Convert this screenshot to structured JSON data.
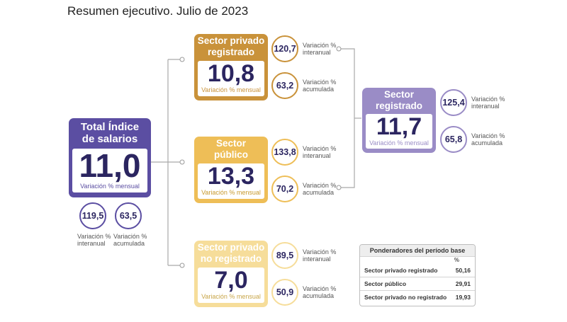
{
  "title": "Resumen ejecutivo. Julio de 2023",
  "colors": {
    "total": "#5b4ea2",
    "registrado": "#9a8cc6",
    "privado": "#c9923a",
    "publico": "#eebe57",
    "no_registrado": "#f6dd9a"
  },
  "total": {
    "label": "Total Índice de salarios",
    "value": "11,0",
    "sublabel": "Variación % mensual",
    "interanual": "119,5",
    "acumulada": "63,5",
    "interanual_label": "Variación % interanual",
    "acumulada_label": "Variación % acumulada"
  },
  "privado": {
    "label": "Sector privado registrado",
    "value": "10,8",
    "sublabel": "Variación % mensual",
    "interanual": "120,7",
    "acumulada": "63,2",
    "interanual_label": "Variación % interanual",
    "acumulada_label": "Variación % acumulada"
  },
  "publico": {
    "label": "Sector público",
    "value": "13,3",
    "sublabel": "Variación % mensual",
    "interanual": "133,8",
    "acumulada": "70,2",
    "interanual_label": "Variación % interanual",
    "acumulada_label": "Variación % acumulada"
  },
  "no_registrado": {
    "label": "Sector privado no registrado",
    "value": "7,0",
    "sublabel": "Variación % mensual",
    "interanual": "89,5",
    "acumulada": "50,9",
    "interanual_label": "Variación % interanual",
    "acumulada_label": "Variación % acumulada"
  },
  "registrado": {
    "label": "Sector registrado",
    "value": "11,7",
    "sublabel": "Variación % mensual",
    "interanual": "125,4",
    "acumulada": "65,8",
    "interanual_label": "Variación % interanual",
    "acumulada_label": "Variación % acumulada"
  },
  "ponderadores": {
    "title": "Ponderadores del período base",
    "unit": "%",
    "rows": [
      {
        "label": "Sector privado registrado",
        "value": "50,16"
      },
      {
        "label": "Sector público",
        "value": "29,91"
      },
      {
        "label": "Sector privado no registrado",
        "value": "19,93"
      }
    ]
  }
}
